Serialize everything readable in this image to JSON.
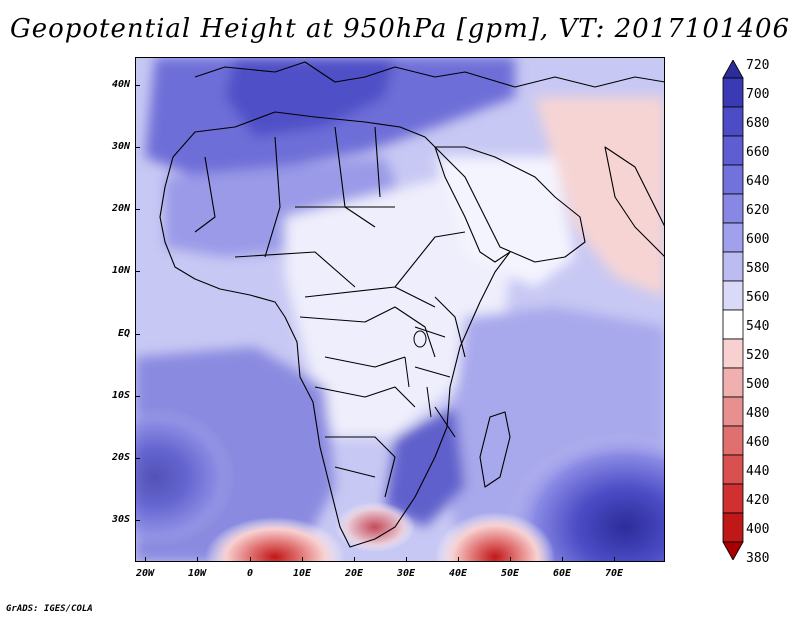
{
  "title": "Geopotential Height at 950hPa [gpm], VT: 2017101406",
  "credit": "GrADS: IGES/COLA",
  "map": {
    "lat_labels": [
      "40N",
      "30N",
      "20N",
      "10N",
      "EQ",
      "10S",
      "20S",
      "30S"
    ],
    "lon_labels": [
      "20W",
      "10W",
      "0",
      "10E",
      "20E",
      "30E",
      "40E",
      "50E",
      "60E",
      "70E"
    ]
  },
  "colorbar": {
    "levels": [
      "720",
      "700",
      "680",
      "660",
      "640",
      "620",
      "600",
      "580",
      "560",
      "540",
      "520",
      "500",
      "480",
      "460",
      "440",
      "420",
      "400",
      "380"
    ],
    "colors": [
      "#2c2c9a",
      "#3a3ab4",
      "#4c4cc6",
      "#5e5ed2",
      "#7272dc",
      "#8888e4",
      "#a0a0ec",
      "#bcbcf2",
      "#dadaf8",
      "#ffffff",
      "#f8d0d0",
      "#f0b0b0",
      "#e89090",
      "#e07070",
      "#d85050",
      "#d03030",
      "#c01818",
      "#a80000"
    ]
  }
}
